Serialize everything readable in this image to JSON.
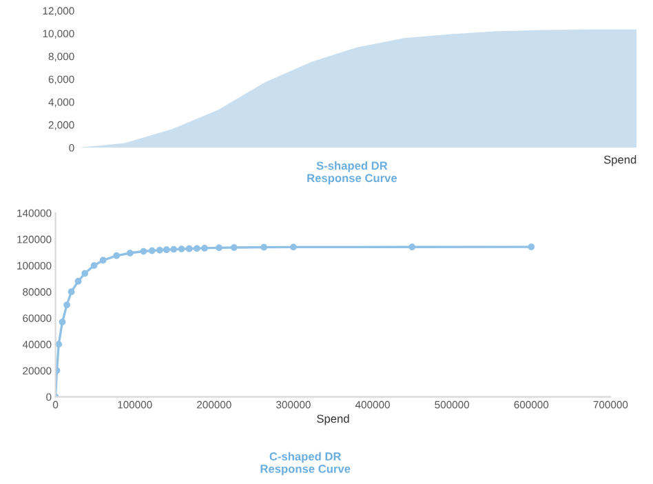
{
  "chart_data": [
    {
      "type": "area",
      "title": "S-shaped DR\nResponse Curve",
      "xlabel": "Spend",
      "categories": [
        null,
        null,
        null,
        null,
        null,
        null,
        null,
        null,
        null,
        null,
        null,
        null,
        null
      ],
      "series": [
        {
          "color": "#c9dff0",
          "values": [
            0,
            400,
            1600,
            3300,
            5700,
            7500,
            8800,
            9600,
            9950,
            10200,
            10300,
            10350,
            10350
          ]
        }
      ],
      "ylim": [
        0,
        12000
      ],
      "yticks": [
        0,
        {
          "value": 2000,
          "label": "2,000"
        },
        {
          "value": 4000,
          "label": "4,000"
        },
        {
          "value": 6000,
          "label": "6,000"
        },
        {
          "value": 8000,
          "label": "8,000"
        },
        {
          "value": 10000,
          "label": "10,000"
        },
        {
          "value": 12000,
          "label": "12,000"
        }
      ],
      "tick_labels": "y",
      "grid": false,
      "legend": false
    },
    {
      "type": "line",
      "title": "C-shaped DR\nResponse Curve",
      "xlabel": "Spend",
      "marker": "circle",
      "line_style": "solid",
      "x": [
        0,
        1700,
        4000,
        8600,
        14300,
        20000,
        28600,
        37000,
        48600,
        60000,
        77000,
        94000,
        111000,
        121700,
        131400,
        140000,
        149100,
        158900,
        168600,
        178300,
        188000,
        206300,
        225100,
        262900,
        300000,
        449700,
        600000
      ],
      "series": [
        {
          "color": "#8fc1e6",
          "values": [
            0,
            20000,
            40000,
            57000,
            70000,
            80000,
            88000,
            94000,
            100000,
            104000,
            107500,
            109500,
            110800,
            111300,
            111700,
            112000,
            112300,
            112600,
            112800,
            113000,
            113200,
            113500,
            113700,
            113900,
            114000,
            114100,
            114200
          ]
        }
      ],
      "xlim": [
        0,
        700000
      ],
      "xticks": [
        0,
        100000,
        200000,
        300000,
        400000,
        500000,
        600000,
        700000
      ],
      "ylim": [
        0,
        140000
      ],
      "yticks": [
        0,
        20000,
        40000,
        60000,
        80000,
        100000,
        120000,
        140000
      ],
      "grid": false,
      "legend": false
    }
  ]
}
